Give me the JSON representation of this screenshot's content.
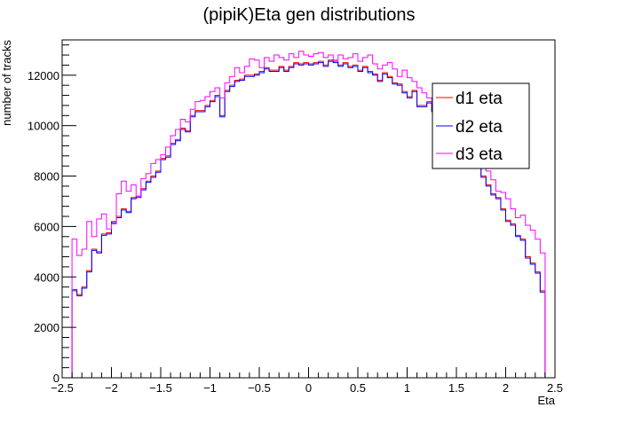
{
  "chart_data": {
    "type": "line",
    "title": "(pipiK)Eta gen distributions",
    "xlabel": "Eta",
    "ylabel": "number of tracks",
    "xlim": [
      -2.5,
      2.5
    ],
    "ylim": [
      0,
      13400
    ],
    "x_ticks": [
      -2.5,
      -2,
      -1.5,
      -1,
      -0.5,
      0,
      0.5,
      1,
      1.5,
      2,
      2.5
    ],
    "x_tick_labels": [
      "−2.5",
      "−2",
      "−1.5",
      "−1",
      "−0.5",
      "0",
      "0.5",
      "1",
      "1.5",
      "2",
      "2.5"
    ],
    "y_ticks": [
      0,
      2000,
      4000,
      6000,
      8000,
      10000,
      12000
    ],
    "y_tick_labels": [
      "0",
      "2000",
      "4000",
      "6000",
      "8000",
      "10000",
      "12000"
    ],
    "grid": false,
    "legend_position": "right",
    "bin_edges_x": [
      -2.4,
      2.4
    ],
    "bin_count": 96,
    "series": [
      {
        "name": "d1 eta",
        "color": "#ff0000",
        "values": [
          3500,
          3300,
          3600,
          4250,
          5100,
          5000,
          5700,
          5750,
          6200,
          6400,
          6700,
          6600,
          7150,
          7200,
          7500,
          7800,
          8000,
          8200,
          8700,
          8800,
          9300,
          9450,
          9900,
          9800,
          10400,
          10600,
          10600,
          10800,
          11000,
          11200,
          10400,
          11400,
          11600,
          11800,
          11850,
          12000,
          12000,
          12050,
          12150,
          12300,
          12200,
          12200,
          12350,
          12200,
          12350,
          12500,
          12450,
          12500,
          12450,
          12500,
          12550,
          12400,
          12600,
          12550,
          12400,
          12500,
          12350,
          12400,
          12200,
          12350,
          12150,
          12050,
          11800,
          12100,
          11950,
          11700,
          11650,
          11350,
          11150,
          11400,
          10800,
          10800,
          10950,
          10600,
          10500,
          10150,
          9850,
          9750,
          9500,
          9350,
          8950,
          8800,
          8400,
          8000,
          7650,
          7300,
          7150,
          6700,
          6250,
          6100,
          5650,
          5500,
          4800,
          4550,
          4200,
          3450
        ]
      },
      {
        "name": "d2 eta",
        "color": "#0000ff",
        "values": [
          3450,
          3250,
          3550,
          4200,
          5050,
          4950,
          5650,
          5700,
          6150,
          6350,
          6650,
          6550,
          7100,
          7150,
          7450,
          7750,
          7950,
          8150,
          8650,
          8750,
          9250,
          9400,
          9850,
          9750,
          10350,
          10550,
          10550,
          10750,
          10950,
          11150,
          10350,
          11350,
          11550,
          11750,
          11800,
          11950,
          11950,
          12000,
          12100,
          12250,
          12150,
          12150,
          12300,
          12150,
          12300,
          12450,
          12400,
          12450,
          12400,
          12450,
          12500,
          12350,
          12550,
          12500,
          12350,
          12450,
          12300,
          12350,
          12150,
          12300,
          12100,
          12000,
          11750,
          12050,
          11900,
          11650,
          11600,
          11300,
          11100,
          11350,
          10750,
          10750,
          10900,
          10550,
          10450,
          10100,
          9800,
          9700,
          9450,
          9300,
          8900,
          8750,
          8350,
          7950,
          7600,
          7250,
          7100,
          6650,
          6200,
          6050,
          5600,
          5450,
          4750,
          4500,
          4150,
          3400
        ]
      },
      {
        "name": "d3 eta",
        "color": "#ff00ff",
        "values": [
          5500,
          4850,
          5100,
          6200,
          5600,
          6300,
          6500,
          5900,
          6100,
          7300,
          7800,
          7400,
          7650,
          7200,
          7900,
          8100,
          8500,
          8650,
          8850,
          9150,
          9600,
          9850,
          10250,
          10150,
          10650,
          10950,
          11000,
          11150,
          11350,
          11500,
          11100,
          11700,
          11950,
          12300,
          12100,
          12350,
          12650,
          12600,
          12300,
          12700,
          12550,
          12800,
          12700,
          12600,
          12850,
          12700,
          12950,
          12800,
          12750,
          12850,
          12900,
          12700,
          12800,
          12600,
          12800,
          12650,
          12700,
          12850,
          12550,
          12700,
          12800,
          12450,
          12250,
          12400,
          12500,
          12250,
          11950,
          12200,
          11900,
          11750,
          11500,
          11300,
          11100,
          10900,
          10750,
          10400,
          10150,
          10250,
          9900,
          9600,
          9350,
          9050,
          8900,
          8450,
          8200,
          7850,
          7400,
          7350,
          7100,
          6700,
          6350,
          6450,
          6050,
          5850,
          5500,
          4950
        ]
      }
    ]
  }
}
